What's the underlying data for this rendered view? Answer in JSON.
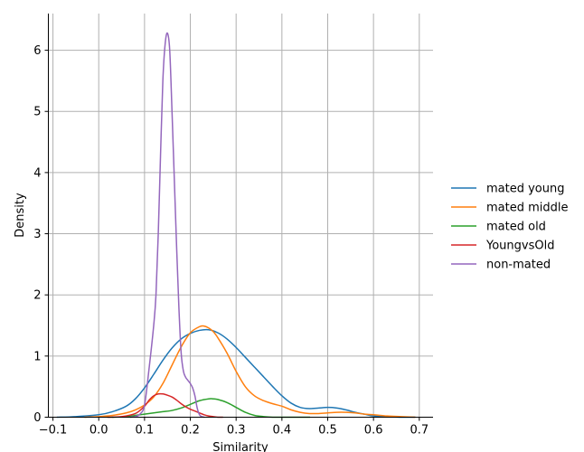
{
  "chart_data": {
    "type": "line",
    "title": "",
    "xlabel": "Similarity",
    "ylabel": "Density",
    "xlim": [
      -0.11,
      0.73
    ],
    "ylim": [
      0,
      6.6
    ],
    "xticks": [
      -0.1,
      0.0,
      0.1,
      0.2,
      0.3,
      0.4,
      0.5,
      0.6,
      0.7
    ],
    "xtick_labels": [
      "−0.1",
      "0.0",
      "0.1",
      "0.2",
      "0.3",
      "0.4",
      "0.5",
      "0.6",
      "0.7"
    ],
    "yticks": [
      0,
      1,
      2,
      3,
      4,
      5,
      6
    ],
    "ytick_labels": [
      "0",
      "1",
      "2",
      "3",
      "4",
      "5",
      "6"
    ],
    "grid": true,
    "legend_position": "right",
    "series": [
      {
        "name": "mated young",
        "color": "#1f77b4",
        "x": [
          -0.09,
          -0.05,
          0.0,
          0.03,
          0.06,
          0.08,
          0.1,
          0.12,
          0.14,
          0.16,
          0.18,
          0.2,
          0.22,
          0.24,
          0.26,
          0.28,
          0.3,
          0.32,
          0.34,
          0.36,
          0.38,
          0.4,
          0.42,
          0.44,
          0.46,
          0.48,
          0.5,
          0.52,
          0.54,
          0.56,
          0.58,
          0.6,
          0.63,
          0.66,
          0.69
        ],
        "y": [
          0.0,
          0.01,
          0.04,
          0.09,
          0.18,
          0.3,
          0.48,
          0.7,
          0.93,
          1.13,
          1.28,
          1.37,
          1.42,
          1.43,
          1.38,
          1.28,
          1.14,
          0.98,
          0.82,
          0.66,
          0.5,
          0.35,
          0.23,
          0.16,
          0.14,
          0.15,
          0.16,
          0.15,
          0.12,
          0.08,
          0.05,
          0.02,
          0.01,
          0.0,
          0.0
        ]
      },
      {
        "name": "mated middle",
        "color": "#ff7f0e",
        "x": [
          -0.03,
          0.0,
          0.03,
          0.06,
          0.08,
          0.1,
          0.12,
          0.14,
          0.16,
          0.18,
          0.2,
          0.22,
          0.23,
          0.24,
          0.25,
          0.26,
          0.28,
          0.3,
          0.32,
          0.34,
          0.36,
          0.38,
          0.4,
          0.42,
          0.44,
          0.46,
          0.48,
          0.5,
          0.52,
          0.54,
          0.56,
          0.58,
          0.6,
          0.63,
          0.66,
          0.69
        ],
        "y": [
          0.0,
          0.01,
          0.03,
          0.07,
          0.12,
          0.2,
          0.33,
          0.55,
          0.85,
          1.15,
          1.38,
          1.48,
          1.49,
          1.46,
          1.4,
          1.3,
          1.05,
          0.75,
          0.5,
          0.35,
          0.27,
          0.22,
          0.18,
          0.12,
          0.08,
          0.06,
          0.06,
          0.07,
          0.08,
          0.08,
          0.07,
          0.05,
          0.04,
          0.02,
          0.01,
          0.0
        ]
      },
      {
        "name": "mated old",
        "color": "#2ca02c",
        "x": [
          0.03,
          0.06,
          0.08,
          0.1,
          0.12,
          0.14,
          0.16,
          0.18,
          0.2,
          0.22,
          0.24,
          0.25,
          0.26,
          0.28,
          0.3,
          0.32,
          0.34,
          0.36,
          0.38,
          0.4,
          0.43,
          0.46
        ],
        "y": [
          0.0,
          0.01,
          0.03,
          0.05,
          0.07,
          0.09,
          0.11,
          0.15,
          0.21,
          0.27,
          0.3,
          0.3,
          0.29,
          0.24,
          0.16,
          0.08,
          0.03,
          0.01,
          0.0,
          0.0,
          0.0,
          0.0
        ]
      },
      {
        "name": "YoungvsOld",
        "color": "#d62728",
        "x": [
          0.02,
          0.05,
          0.08,
          0.1,
          0.11,
          0.12,
          0.13,
          0.14,
          0.15,
          0.16,
          0.17,
          0.18,
          0.19,
          0.2,
          0.21,
          0.22,
          0.23,
          0.24,
          0.25,
          0.26,
          0.27
        ],
        "y": [
          0.0,
          0.01,
          0.06,
          0.18,
          0.28,
          0.35,
          0.38,
          0.38,
          0.36,
          0.33,
          0.28,
          0.22,
          0.17,
          0.13,
          0.1,
          0.07,
          0.04,
          0.02,
          0.01,
          0.0,
          0.0
        ]
      },
      {
        "name": "non-mated",
        "color": "#9467bd",
        "x": [
          0.07,
          0.08,
          0.09,
          0.1,
          0.11,
          0.12,
          0.125,
          0.13,
          0.135,
          0.14,
          0.145,
          0.15,
          0.155,
          0.16,
          0.165,
          0.17,
          0.175,
          0.18,
          0.185,
          0.19,
          0.195,
          0.2,
          0.205,
          0.21,
          0.215,
          0.22,
          0.225,
          0.23
        ],
        "y": [
          0.0,
          0.01,
          0.05,
          0.2,
          0.8,
          1.5,
          2.0,
          3.0,
          4.3,
          5.5,
          6.1,
          6.28,
          6.0,
          5.0,
          3.9,
          2.8,
          1.8,
          1.05,
          0.75,
          0.65,
          0.6,
          0.55,
          0.48,
          0.35,
          0.15,
          0.04,
          0.01,
          0.0
        ]
      }
    ]
  }
}
